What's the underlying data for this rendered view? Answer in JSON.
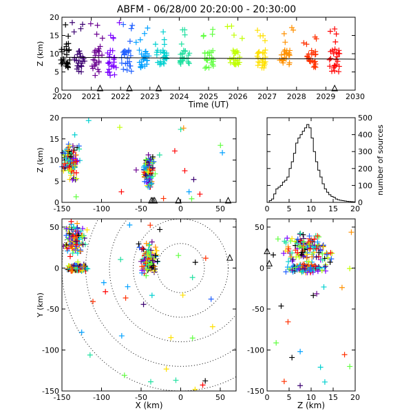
{
  "title": "ABFM - 06/28/00 20:20:00 - 20:30:00",
  "colors": {
    "axis": "#000000",
    "palette": [
      "#000000",
      "#3a0070",
      "#6a0090",
      "#7a00ff",
      "#2060ff",
      "#00a0ff",
      "#00d0d0",
      "#20e0a0",
      "#60ff40",
      "#c0ff00",
      "#ffe000",
      "#ff9000",
      "#ff3000",
      "#ff0000"
    ]
  },
  "chart_data": [
    {
      "id": "time-height",
      "type": "scatter",
      "xlabel": "Time (UT)",
      "ylabel": "Z (km)",
      "xlim": [
        2020,
        2030
      ],
      "ylim": [
        0,
        20
      ],
      "xticks": [
        "2020",
        "2021",
        "2022",
        "2023",
        "2024",
        "2025",
        "2026",
        "2027",
        "2028",
        "2029",
        "2030"
      ],
      "yticks": [
        "0",
        "5",
        "10",
        "15",
        "20"
      ],
      "reference_line_z": 9,
      "station_triangles_x": [
        2021.3,
        2022.3,
        2023.3,
        2029.3
      ],
      "clusters": [
        {
          "t": 2020.1,
          "zmin": 5,
          "zmax": 12
        },
        {
          "t": 2020.6,
          "zmin": 5,
          "zmax": 11
        },
        {
          "t": 2021.2,
          "zmin": 4,
          "zmax": 12
        },
        {
          "t": 2021.7,
          "zmin": 4,
          "zmax": 11
        },
        {
          "t": 2022.2,
          "zmin": 5,
          "zmax": 11
        },
        {
          "t": 2022.8,
          "zmin": 6,
          "zmax": 11
        },
        {
          "t": 2023.4,
          "zmin": 7,
          "zmax": 11
        },
        {
          "t": 2024.2,
          "zmin": 7,
          "zmax": 11
        },
        {
          "t": 2025.0,
          "zmin": 6,
          "zmax": 11
        },
        {
          "t": 2025.9,
          "zmin": 7,
          "zmax": 11
        },
        {
          "t": 2026.8,
          "zmin": 6,
          "zmax": 11
        },
        {
          "t": 2027.6,
          "zmin": 7,
          "zmax": 11
        },
        {
          "t": 2028.5,
          "zmin": 6,
          "zmax": 11
        },
        {
          "t": 2029.3,
          "zmin": 5,
          "zmax": 12
        }
      ]
    },
    {
      "id": "xz-projection",
      "type": "scatter",
      "ylabel": "Z (km)",
      "xlim": [
        -150,
        70
      ],
      "ylim": [
        0,
        20
      ],
      "xticks": [
        "-150",
        "-100",
        "-50",
        "0",
        "50"
      ],
      "yticks": [
        "0",
        "5",
        "10",
        "15",
        "20"
      ],
      "clusters": [
        {
          "x": -140,
          "z": 10,
          "sx": 8,
          "sz": 3
        },
        {
          "x": -40,
          "z": 7,
          "sx": 5,
          "sz": 3
        }
      ],
      "triangles_x": [
        -37,
        -35,
        -33,
        -3,
        60
      ]
    },
    {
      "id": "altitude-histogram",
      "type": "line",
      "ylabel": "number of sources",
      "xlim": [
        0,
        20
      ],
      "ylim": [
        0,
        500
      ],
      "xticks": [
        "0",
        "5",
        "10",
        "15",
        "20"
      ],
      "yticks": [
        "0",
        "100",
        "200",
        "300",
        "400",
        "500"
      ],
      "x": [
        0,
        0.5,
        1,
        1.5,
        2,
        2.5,
        3,
        3.5,
        4,
        4.5,
        5,
        5.5,
        6,
        6.5,
        7,
        7.5,
        8,
        8.5,
        9,
        9.5,
        10,
        10.5,
        11,
        11.5,
        12,
        12.5,
        13,
        13.5,
        14,
        14.5,
        15,
        15.5,
        16,
        16.5,
        17,
        17.5,
        18,
        18.5,
        19,
        19.5,
        20
      ],
      "values": [
        0,
        10,
        20,
        50,
        80,
        90,
        100,
        120,
        130,
        150,
        200,
        240,
        290,
        350,
        380,
        400,
        420,
        440,
        460,
        440,
        380,
        300,
        240,
        190,
        150,
        110,
        80,
        60,
        45,
        35,
        30,
        20,
        15,
        12,
        10,
        8,
        6,
        5,
        4,
        3,
        0
      ]
    },
    {
      "id": "xy-plan",
      "type": "scatter",
      "xlabel": "X (km)",
      "ylabel": "Y (km)",
      "xlim": [
        -150,
        70
      ],
      "ylim": [
        -150,
        60
      ],
      "xticks": [
        "-150",
        "-100",
        "-50",
        "0",
        "50"
      ],
      "yticks": [
        "-150",
        "-100",
        "-50",
        "0",
        "50"
      ],
      "range_rings_km": [
        30,
        60,
        90,
        120,
        150
      ],
      "clusters": [
        {
          "x": -135,
          "y": 35,
          "sx": 10,
          "sy": 15
        },
        {
          "x": -40,
          "y": 10,
          "sx": 8,
          "sy": 15
        },
        {
          "x": -130,
          "y": 0,
          "sx": 10,
          "sy": 3
        }
      ],
      "triangles": [
        {
          "x": 62,
          "y": 12
        }
      ]
    },
    {
      "id": "zy-projection",
      "type": "scatter",
      "xlabel": "Z (km)",
      "xlim": [
        0,
        20
      ],
      "ylim": [
        -150,
        60
      ],
      "xticks": [
        "0",
        "5",
        "10",
        "15",
        "20"
      ],
      "yticks": [
        "-150",
        "-100",
        "-50",
        "0",
        "50"
      ],
      "clusters": [
        {
          "z": 9,
          "y": 25,
          "sz": 4,
          "sy": 15
        },
        {
          "z": 9,
          "y": 0,
          "sz": 3,
          "sy": 4
        }
      ],
      "triangles": [
        {
          "z": 0,
          "y": 20
        },
        {
          "z": 0.5,
          "y": 5
        }
      ]
    }
  ]
}
